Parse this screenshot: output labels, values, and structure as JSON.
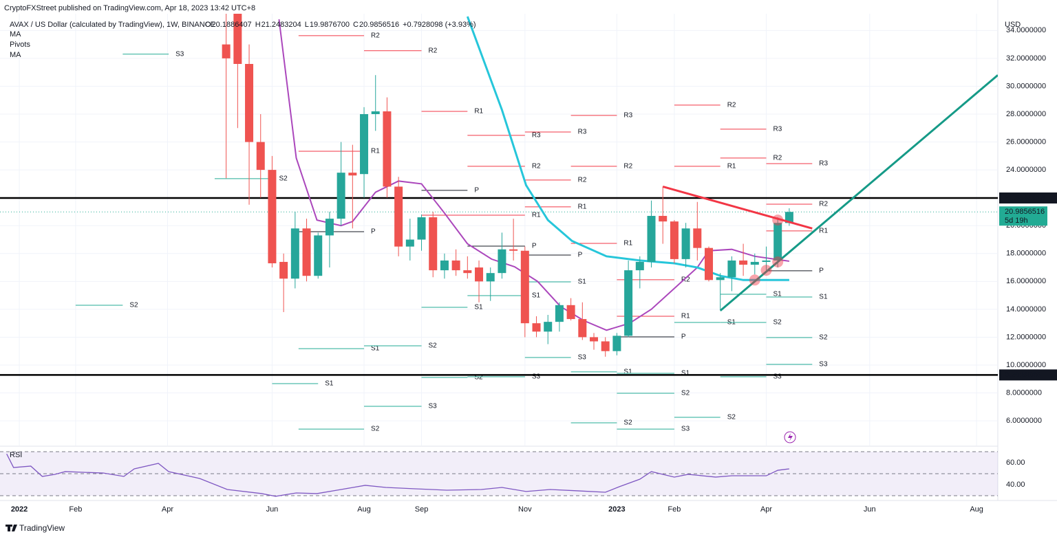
{
  "header": {
    "publisher": "CryptoFXStreet published on TradingView.com, Apr 18, 2023 13:42 UTC+8",
    "symbol": "AVAX / US Dollar (calculated by TradingView), 1W, BINANCE",
    "ohlc": [
      {
        "key": "O",
        "value": "20.1886407"
      },
      {
        "key": "H",
        "value": "21.2483204"
      },
      {
        "key": "L",
        "value": "19.9876700"
      },
      {
        "key": "C",
        "value": "20.9856516"
      }
    ],
    "change": "+0.7928098 (+3.93%)",
    "currency": "USD"
  },
  "footer": {
    "brand": "TradingView"
  },
  "chart_data": [
    {
      "type": "candlestick",
      "indicators": [
        "MA",
        "Pivots",
        "MA"
      ],
      "up_color": "#26a69a",
      "down_color": "#ef5350",
      "xlim": [
        -1.68,
        85.15
      ],
      "xticks": [
        {
          "value": 0,
          "label": "2022"
        },
        {
          "value": 4.9,
          "label": "Feb"
        },
        {
          "value": 12.9,
          "label": "Apr"
        },
        {
          "value": 22,
          "label": "Jun"
        },
        {
          "value": 30,
          "label": "Aug"
        },
        {
          "value": 35,
          "label": "Sep"
        },
        {
          "value": 44,
          "label": "Nov"
        },
        {
          "value": 52,
          "label": "2023"
        },
        {
          "value": 57,
          "label": "Feb"
        },
        {
          "value": 65,
          "label": "Apr"
        },
        {
          "value": 74,
          "label": "Jun"
        },
        {
          "value": 83.3,
          "label": "Aug"
        }
      ],
      "ylim": [
        4.23,
        35.2
      ],
      "yticks": [
        {
          "value": 6,
          "label": "6.0000000"
        },
        {
          "value": 8,
          "label": "8.0000000"
        },
        {
          "value": 10,
          "label": "10.0000000"
        },
        {
          "value": 12,
          "label": "12.0000000"
        },
        {
          "value": 14,
          "label": "14.0000000"
        },
        {
          "value": 16,
          "label": "16.0000000"
        },
        {
          "value": 18,
          "label": "18.0000000"
        },
        {
          "value": 20,
          "label": "20.0000000"
        },
        {
          "value": 22,
          "label": "22.0000000"
        },
        {
          "value": 24,
          "label": "24.0000000"
        },
        {
          "value": 26,
          "label": "26.0000000"
        },
        {
          "value": 28,
          "label": "28.0000000"
        },
        {
          "value": 30,
          "label": "30.0000000"
        },
        {
          "value": 32,
          "label": "32.0000000"
        },
        {
          "value": 34,
          "label": "34.0000000"
        }
      ],
      "x": [
        18,
        19,
        20,
        21,
        22,
        23,
        24,
        25,
        26,
        27,
        28,
        29,
        30,
        31,
        32,
        33,
        34,
        35,
        36,
        37,
        38,
        39,
        40,
        41,
        42,
        43,
        44,
        45,
        46,
        47,
        48,
        49,
        50,
        51,
        52,
        53,
        54,
        55,
        56,
        57,
        58,
        59,
        60,
        61,
        62,
        63,
        64,
        65,
        66,
        67
      ],
      "open": [
        33,
        36,
        31.6,
        26,
        24,
        17.4,
        16.2,
        19.8,
        16.4,
        19.3,
        20.5,
        23.8,
        23.7,
        28,
        28.2,
        22.8,
        18.5,
        19,
        20.6,
        16.8,
        17.5,
        16.8,
        17,
        16,
        16.6,
        18.3,
        18.2,
        13,
        12.4,
        13.1,
        14.3,
        13.3,
        12,
        11.7,
        11,
        12.1,
        16.8,
        17.4,
        20.7,
        20.3,
        17.6,
        19.8,
        18.4,
        16.1,
        16.3,
        17.5,
        17.2,
        17.4,
        17.5,
        20.1886407
      ],
      "high": [
        36,
        36,
        33,
        28,
        25,
        18,
        21,
        20.5,
        19.5,
        21,
        26,
        25.8,
        28.5,
        30.8,
        29.2,
        23.5,
        20.5,
        20.8,
        21,
        18,
        18.3,
        17.8,
        17.5,
        17,
        19.5,
        20.5,
        18.5,
        13.5,
        13.6,
        14.5,
        14.8,
        14.5,
        12.3,
        12,
        12.3,
        17.5,
        17.8,
        21.8,
        22.8,
        20.4,
        20.2,
        21.7,
        18.5,
        16.6,
        17.8,
        18.7,
        18,
        18.5,
        20.6,
        21.2483204
      ],
      "low": [
        23.4,
        27,
        21.5,
        22,
        17,
        13.8,
        15.5,
        16,
        16.2,
        17,
        20,
        19.8,
        22,
        26.8,
        22,
        17.8,
        17.5,
        18.2,
        16.3,
        16.2,
        16.4,
        16.2,
        14.5,
        14.6,
        16.2,
        17.5,
        12,
        12,
        11.5,
        12.4,
        13.2,
        11.8,
        11.1,
        10.6,
        10.7,
        12,
        15.5,
        17,
        18.7,
        17.3,
        17,
        17.5,
        16,
        14,
        15.3,
        16.4,
        16.5,
        16.8,
        17,
        19.98767
      ],
      "close": [
        32,
        31.6,
        26,
        24,
        17.3,
        16.2,
        19.8,
        16.4,
        19.3,
        20.5,
        23.8,
        23.6,
        28,
        28.2,
        22.8,
        18.5,
        19,
        20.6,
        16.8,
        17.5,
        16.8,
        16.6,
        16,
        16.6,
        18.3,
        18.2,
        13,
        12.4,
        13.1,
        14.3,
        13.3,
        12,
        11.7,
        11,
        12.1,
        16.8,
        17.4,
        20.7,
        20.3,
        17.6,
        19.8,
        18.4,
        16.1,
        16.3,
        17.5,
        17.2,
        17.4,
        17.5,
        20.2,
        20.9856516
      ],
      "moving_averages": [
        {
          "color": "#ab47bc",
          "x": [
            22.6,
            24.1,
            25.9,
            28,
            29,
            31,
            33,
            35,
            37,
            39,
            41.1,
            43.1,
            45.1,
            47.1,
            49.1,
            51.1,
            53.1,
            55,
            57,
            59,
            60,
            62,
            64,
            67
          ],
          "values": [
            34.8,
            24.85,
            20.4,
            20,
            20.3,
            22.4,
            23.2,
            23,
            20.9,
            18.7,
            17.6,
            17.05,
            16,
            14.2,
            13.2,
            12.5,
            13,
            14,
            15.5,
            17,
            18.2,
            18.3,
            17.8,
            17.45
          ]
        },
        {
          "color": "#26c6da",
          "x": [
            39,
            42,
            44.1,
            46,
            48.1,
            51.1,
            54,
            57,
            59,
            61,
            63,
            67
          ],
          "values": [
            35,
            28.3,
            22.9,
            20.4,
            18.9,
            17.8,
            17.5,
            17.3,
            17,
            16.4,
            16.1,
            16.1
          ]
        }
      ],
      "levels": [
        {
          "value": 21.9845818
        },
        {
          "value": 9.2916968
        }
      ],
      "last_price": {
        "value": 20.9856516,
        "countdown": "5d 19h",
        "color": "#22ab94"
      },
      "trendlines": [
        {
          "color": "#f23645",
          "x": [
            56,
            69
          ],
          "values": [
            22.8,
            19.8
          ]
        },
        {
          "color": "#159a87",
          "x": [
            61,
            85.15
          ],
          "values": [
            13.9,
            30.8
          ]
        }
      ],
      "touch_points": {
        "x": [
          64,
          65,
          66,
          66
        ],
        "values": [
          16.1,
          16.8,
          17.4,
          20.4
        ]
      },
      "pivots": [
        {
          "label": "S3",
          "value": 32.3,
          "x": [
            9,
            13
          ]
        },
        {
          "label": "S2",
          "value": 14.29,
          "x": [
            4.9,
            9
          ]
        },
        {
          "label": "R2",
          "value": 33.63,
          "x": [
            24.3,
            30
          ]
        },
        {
          "label": "R2",
          "value": 32.55,
          "x": [
            30,
            35
          ]
        },
        {
          "label": "R1",
          "value": 28.2,
          "x": [
            35,
            39
          ]
        },
        {
          "label": "R1",
          "value": 25.34,
          "x": [
            24.3,
            30
          ]
        },
        {
          "label": "S2",
          "value": 23.37,
          "x": [
            17,
            22
          ]
        },
        {
          "label": "P",
          "value": 19.57,
          "x": [
            24.3,
            30
          ]
        },
        {
          "label": "P",
          "value": 22.53,
          "x": [
            35,
            39
          ]
        },
        {
          "label": "S1",
          "value": 11.18,
          "x": [
            24.3,
            30
          ]
        },
        {
          "label": "S2",
          "value": 11.38,
          "x": [
            30,
            35
          ]
        },
        {
          "label": "S1",
          "value": 8.67,
          "x": [
            22,
            26
          ]
        },
        {
          "label": "S3",
          "value": 7.04,
          "x": [
            30,
            35
          ]
        },
        {
          "label": "S2",
          "value": 5.41,
          "x": [
            24.3,
            30
          ]
        },
        {
          "label": "S1",
          "value": 14.14,
          "x": [
            35,
            39
          ]
        },
        {
          "label": "S2",
          "value": 9.11,
          "x": [
            35,
            39
          ]
        },
        {
          "label": "R3",
          "value": 26.48,
          "x": [
            39,
            44
          ]
        },
        {
          "label": "R2",
          "value": 24.26,
          "x": [
            39,
            44
          ]
        },
        {
          "label": "R1",
          "value": 20.75,
          "x": [
            35,
            44
          ]
        },
        {
          "label": "P",
          "value": 18.53,
          "x": [
            39,
            44
          ]
        },
        {
          "label": "S1",
          "value": 14.98,
          "x": [
            39,
            44
          ]
        },
        {
          "label": "S3",
          "value": 9.16,
          "x": [
            39,
            44
          ]
        },
        {
          "label": "R3",
          "value": 26.72,
          "x": [
            44,
            48
          ]
        },
        {
          "label": "R2",
          "value": 23.27,
          "x": [
            44,
            48
          ]
        },
        {
          "label": "R1",
          "value": 21.35,
          "x": [
            44,
            48
          ]
        },
        {
          "label": "P",
          "value": 17.89,
          "x": [
            44,
            48
          ]
        },
        {
          "label": "S1",
          "value": 15.97,
          "x": [
            44,
            48
          ]
        },
        {
          "label": "S3",
          "value": 10.54,
          "x": [
            44,
            48
          ]
        },
        {
          "label": "R3",
          "value": 27.91,
          "x": [
            48,
            52
          ]
        },
        {
          "label": "R2",
          "value": 24.26,
          "x": [
            48,
            52
          ]
        },
        {
          "label": "R1",
          "value": 18.73,
          "x": [
            48,
            52
          ]
        },
        {
          "label": "S1",
          "value": 9.51,
          "x": [
            48,
            52
          ]
        },
        {
          "label": "S2",
          "value": 5.86,
          "x": [
            48,
            52
          ]
        },
        {
          "label": "R1",
          "value": 13.5,
          "x": [
            52,
            57
          ]
        },
        {
          "label": "P",
          "value": 12.02,
          "x": [
            52,
            57
          ]
        },
        {
          "label": "R2",
          "value": 16.12,
          "x": [
            52,
            57
          ]
        },
        {
          "label": "S1",
          "value": 9.41,
          "x": [
            52,
            57
          ]
        },
        {
          "label": "S2",
          "value": 7.98,
          "x": [
            52,
            57
          ]
        },
        {
          "label": "S3",
          "value": 5.41,
          "x": [
            52,
            57
          ]
        },
        {
          "label": "R2",
          "value": 28.65,
          "x": [
            57,
            61
          ]
        },
        {
          "label": "R1",
          "value": 24.26,
          "x": [
            57,
            61
          ]
        },
        {
          "label": "S1",
          "value": 13.06,
          "x": [
            57,
            61
          ]
        },
        {
          "label": "S2",
          "value": 6.25,
          "x": [
            57,
            61
          ]
        },
        {
          "label": "R3",
          "value": 26.92,
          "x": [
            61,
            65
          ]
        },
        {
          "label": "R2",
          "value": 24.85,
          "x": [
            61,
            65
          ]
        },
        {
          "label": "S1",
          "value": 15.08,
          "x": [
            61,
            65
          ]
        },
        {
          "label": "S2",
          "value": 13.06,
          "x": [
            61,
            65
          ]
        },
        {
          "label": "S3",
          "value": 9.16,
          "x": [
            61,
            65
          ]
        },
        {
          "label": "R3",
          "value": 24.45,
          "x": [
            65,
            69
          ]
        },
        {
          "label": "R2",
          "value": 21.54,
          "x": [
            65,
            69
          ]
        },
        {
          "label": "R1",
          "value": 19.62,
          "x": [
            65,
            69
          ]
        },
        {
          "label": "P",
          "value": 16.76,
          "x": [
            65,
            69
          ]
        },
        {
          "label": "S1",
          "value": 14.88,
          "x": [
            65,
            69
          ]
        },
        {
          "label": "S2",
          "value": 11.97,
          "x": [
            65,
            69
          ]
        },
        {
          "label": "S3",
          "value": 10.05,
          "x": [
            65,
            69
          ]
        }
      ]
    },
    {
      "type": "line",
      "title": "RSI",
      "color": "#7e57c2",
      "ylim": [
        25.6,
        74.4
      ],
      "bands": [
        70,
        50,
        30
      ],
      "yticks": [
        {
          "value": 60,
          "label": "60.00"
        },
        {
          "value": 40,
          "label": "40.00"
        }
      ],
      "x": [
        -1.1,
        -0.5,
        1,
        2,
        3.1,
        4,
        7.3,
        9.1,
        10,
        12.1,
        13,
        15.7,
        18.1,
        21.1,
        22.3,
        24.1,
        25.9,
        28,
        30.1,
        31.9,
        34.3,
        37.2,
        40.2,
        42,
        44.1,
        46.2,
        48.6,
        51,
        52.2,
        54,
        55,
        57,
        58.2,
        60.6,
        62,
        65,
        66,
        67
      ],
      "values": [
        68,
        55.6,
        56.9,
        47.5,
        49.4,
        51.9,
        50.6,
        47.5,
        54.4,
        59.4,
        51.9,
        45.6,
        35.6,
        31.9,
        29.4,
        32.5,
        31.9,
        35.6,
        39.4,
        37.5,
        36.3,
        35,
        35.6,
        37.5,
        33.8,
        35.6,
        34.4,
        33.1,
        38.1,
        45,
        51.9,
        46.9,
        49.4,
        46.9,
        48.1,
        48.1,
        53.1,
        54.4
      ]
    }
  ]
}
